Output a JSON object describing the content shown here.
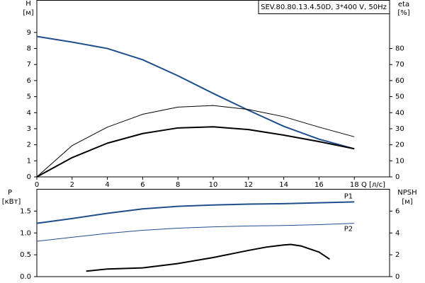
{
  "chart_data": [
    {
      "type": "line",
      "title": "SEV.80.80.13.4.50D, 3*400 V, 50Hz",
      "y_label": "H",
      "y_unit": "[м]",
      "y2_label": "eta",
      "y2_unit": "[%]",
      "x_label": "Q [л/с]",
      "x": [
        0,
        2,
        4,
        6,
        8,
        10,
        12,
        14,
        16,
        18
      ],
      "xlim": [
        0,
        20
      ],
      "xticks": [
        0,
        2,
        4,
        6,
        8,
        10,
        12,
        14,
        16,
        18
      ],
      "ylim": [
        0,
        11
      ],
      "yticks": [
        0,
        1,
        2,
        3,
        4,
        5,
        6,
        7,
        8,
        9
      ],
      "y2lim": [
        0,
        110
      ],
      "y2ticks": [
        0,
        10,
        20,
        30,
        40,
        50,
        60,
        70,
        80
      ],
      "series": [
        {
          "color": "#1f4e8c",
          "width": 2,
          "values": [
            8.75,
            8.4,
            8.0,
            7.3,
            6.3,
            5.2,
            4.15,
            3.15,
            2.35,
            1.75
          ]
        },
        {
          "color": "#000000",
          "width": 1,
          "axis": "y2",
          "values": [
            0,
            19.5,
            31,
            39,
            43.5,
            44.5,
            42,
            37.5,
            31,
            25
          ]
        },
        {
          "color": "#000000",
          "width": 2,
          "axis": "y2",
          "values": [
            0,
            12,
            21,
            27,
            30.5,
            31.2,
            29.5,
            26,
            22,
            17.5
          ]
        }
      ]
    },
    {
      "type": "line",
      "y_label": "P",
      "y_unit": "[кВт]",
      "y2_label": "NPSH",
      "y2_unit": "[м]",
      "x": [
        0,
        2,
        4,
        6,
        8,
        10,
        12,
        14,
        16,
        18
      ],
      "xlim": [
        0,
        20
      ],
      "ylim": [
        0,
        2
      ],
      "yticks": [
        {
          "value": 0,
          "label": "0.0"
        },
        0.5,
        {
          "value": 1,
          "label": "1.0"
        },
        1.5
      ],
      "y2lim": [
        0,
        8
      ],
      "y2ticks": [
        0,
        2,
        4,
        6
      ],
      "series": [
        {
          "name": "P1",
          "color": "#1f4e8c",
          "width": 2,
          "label_dy": -8,
          "values": [
            1.22,
            1.33,
            1.45,
            1.55,
            1.61,
            1.64,
            1.66,
            1.67,
            1.69,
            1.71
          ]
        },
        {
          "name": "P2",
          "color": "#1f4e8c",
          "width": 1,
          "label_dy": 8,
          "values": [
            0.81,
            0.9,
            0.99,
            1.06,
            1.11,
            1.14,
            1.16,
            1.17,
            1.19,
            1.22
          ]
        },
        {
          "color": "#000000",
          "width": 2,
          "axis": "y2",
          "x": [
            2.8,
            4,
            6,
            8,
            10,
            12,
            13,
            14,
            14.4,
            15,
            16,
            16.6
          ],
          "values": [
            0.5,
            0.7,
            0.8,
            1.2,
            1.75,
            2.4,
            2.7,
            2.9,
            2.95,
            2.8,
            2.25,
            1.6
          ]
        }
      ]
    }
  ]
}
